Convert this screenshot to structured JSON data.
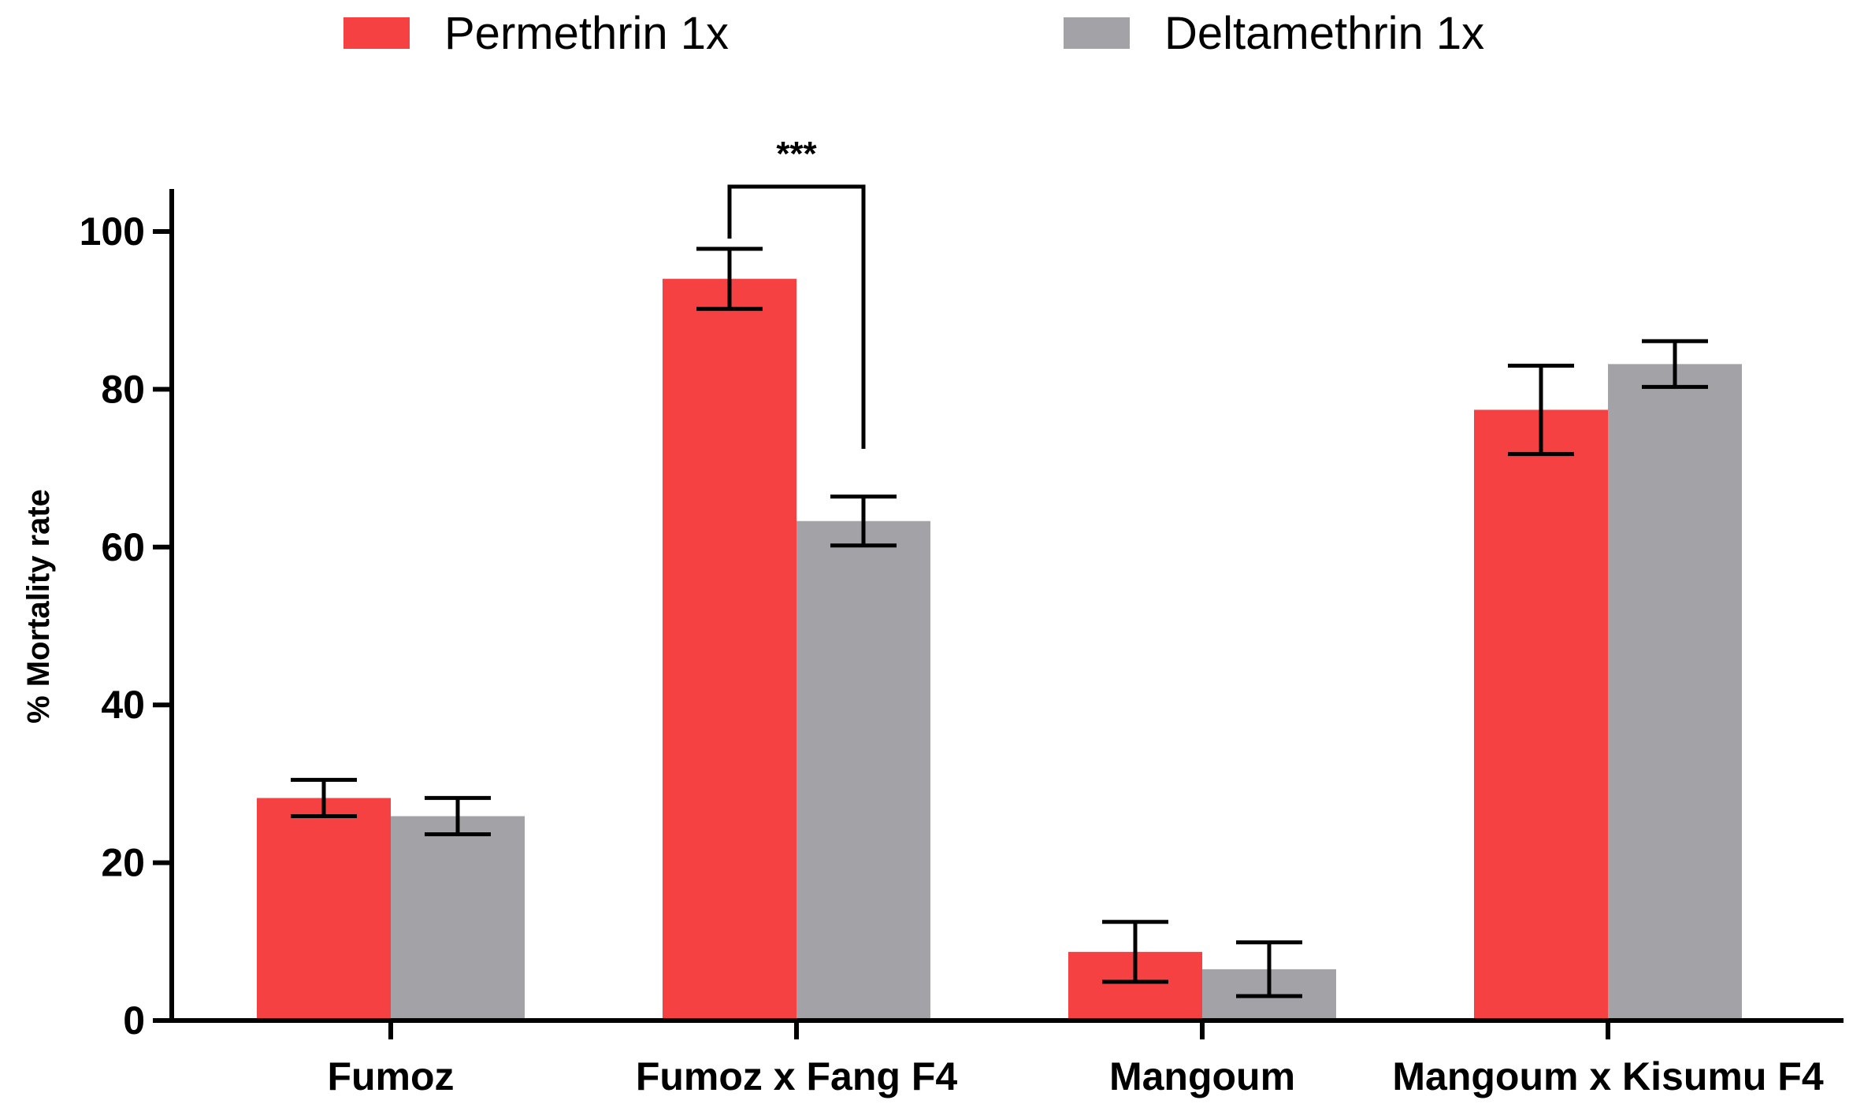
{
  "chart_data": {
    "type": "bar",
    "title": "",
    "xlabel": "",
    "ylabel": "% Mortality rate",
    "ylim": [
      0,
      105
    ],
    "yticks": [
      0,
      20,
      40,
      60,
      80,
      100
    ],
    "categories": [
      "Fumoz",
      "Fumoz x Fang F4",
      "Mangoum",
      "Mangoum x Kisumu F4"
    ],
    "series": [
      {
        "name": "Permethrin 1x",
        "color": "#f64143",
        "values": [
          28.2,
          94.0,
          8.7,
          77.4
        ],
        "error": [
          2.3,
          3.8,
          3.8,
          5.6
        ]
      },
      {
        "name": "Deltamethrin 1x",
        "color": "#a3a2a7",
        "values": [
          25.9,
          63.3,
          6.5,
          83.2
        ],
        "error": [
          2.3,
          3.1,
          3.4,
          2.9
        ]
      }
    ],
    "legend_position": "top-center",
    "annotations": [
      {
        "text": "***",
        "category": "Fumoz x Fang F4",
        "between_series": [
          0,
          1
        ],
        "bracket_y": 106
      }
    ]
  }
}
